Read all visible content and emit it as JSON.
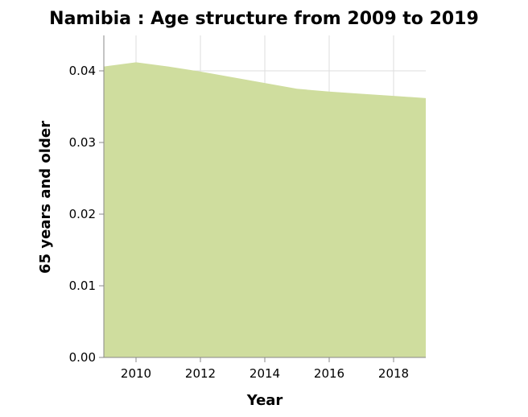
{
  "chart_data": {
    "type": "area",
    "title": "Namibia : Age structure from 2009 to 2019",
    "xlabel": "Year",
    "ylabel": "65 years and older",
    "x": [
      2009,
      2010,
      2011,
      2012,
      2013,
      2014,
      2015,
      2016,
      2017,
      2018,
      2019
    ],
    "series": [
      {
        "values": [
          0.0406,
          0.0412,
          0.0406,
          0.0399,
          0.0391,
          0.0383,
          0.0375,
          0.0371,
          0.0368,
          0.0365,
          0.0362
        ]
      }
    ],
    "xlim": [
      2009,
      2019
    ],
    "ylim": [
      0,
      0.04
    ],
    "x_ticks": [
      "2010",
      "2012",
      "2014",
      "2016",
      "2018"
    ],
    "x_tick_values": [
      2010,
      2012,
      2014,
      2016,
      2018
    ],
    "y_ticks": [
      "0.00",
      "0.01",
      "0.02",
      "0.03",
      "0.04"
    ],
    "y_tick_values": [
      0,
      0.01,
      0.02,
      0.03,
      0.04
    ],
    "grid": true,
    "fill_color": "#cfdd9e"
  }
}
